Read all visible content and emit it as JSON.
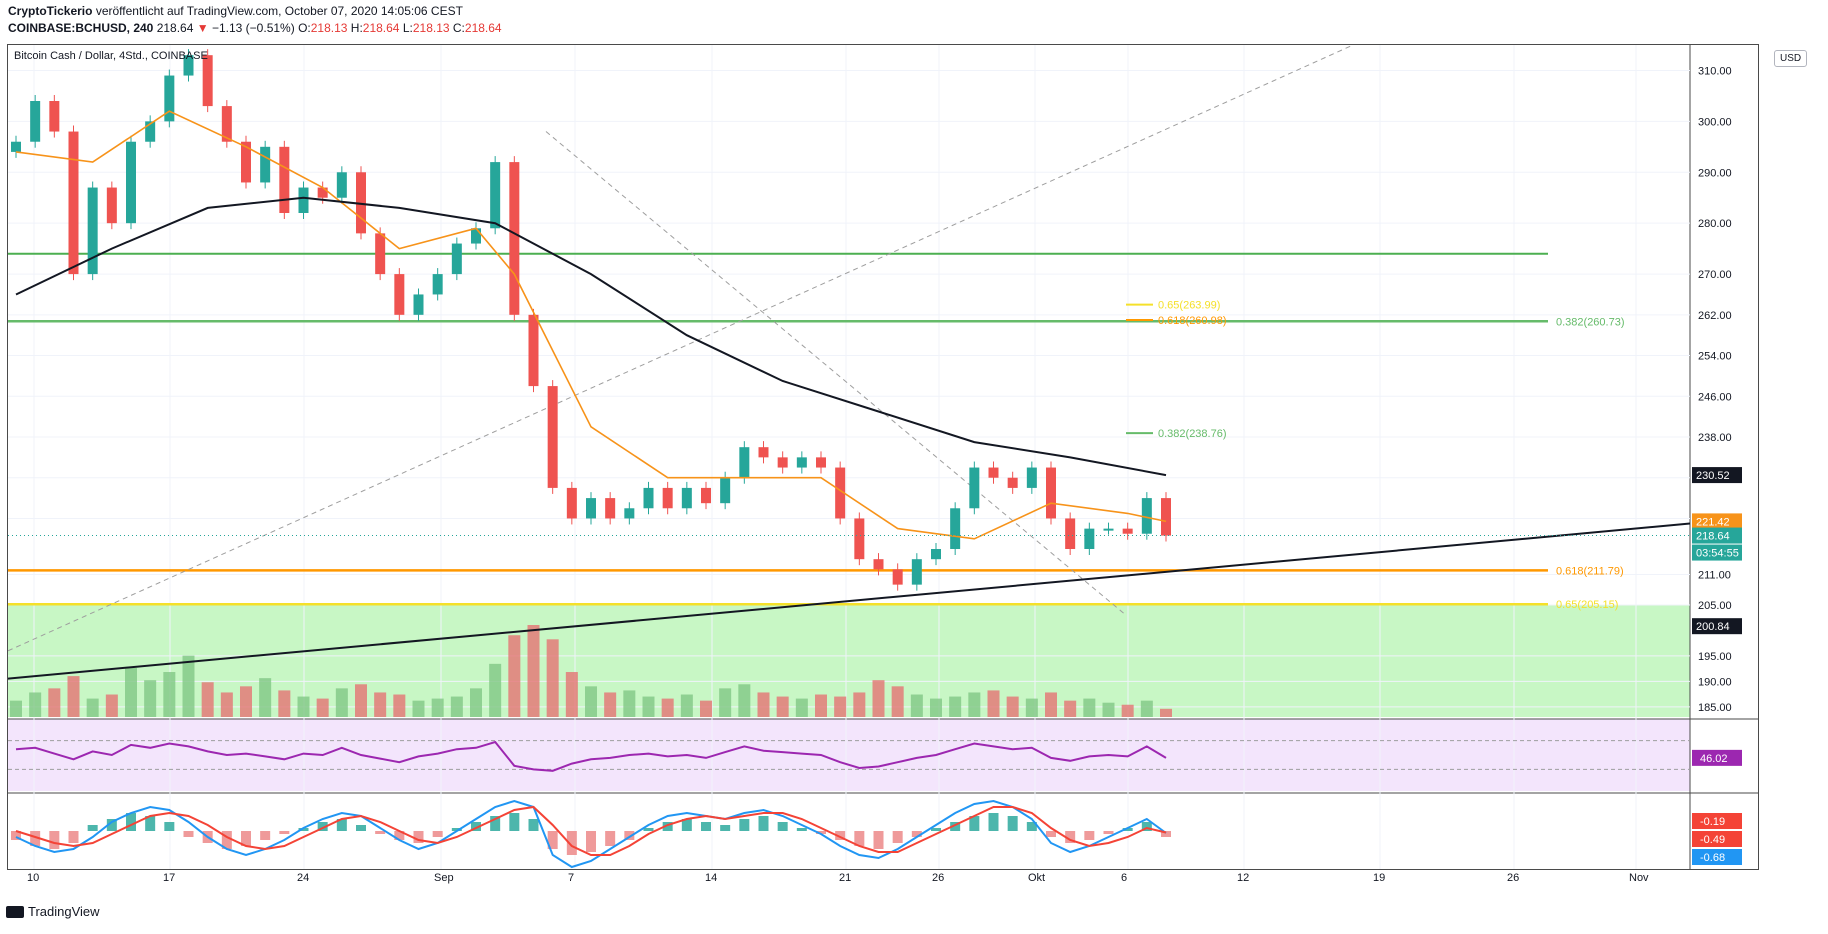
{
  "header": {
    "author": "CryptoTickerio",
    "published_text": "veröffentlicht auf TradingView.com, October 07, 2020 14:05:06 CEST",
    "symbol": "COINBASE:BCHUSD, 240",
    "last": "218.64",
    "change": "−1.13 (−0.51%)",
    "o_label": "O:",
    "o_value": "218.13",
    "h_label": "H:",
    "h_value": "218.64",
    "l_label": "L:",
    "l_value": "218.13",
    "c_label": "C:",
    "c_value": "218.64"
  },
  "chart_title": "Bitcoin Cash / Dollar, 4Std., COINBASE",
  "currency_badge": "USD",
  "branding": "TradingView",
  "colors": {
    "up": "#26a69a",
    "down": "#ef5350",
    "ma_short": "#f7931a",
    "ma_long": "#131722",
    "fib_orange": "#ff9800",
    "fib_yellow": "#f5e02a",
    "fib_green": "#66bb6a",
    "rsi_line": "#9c27b0",
    "macd_line": "#2196f3",
    "signal_line": "#f44336"
  },
  "chart_data": {
    "type": "line",
    "title": "Bitcoin Cash / Dollar, 4Std., COINBASE",
    "x_ticks": [
      "10",
      "17",
      "24",
      "Sep",
      "7",
      "14",
      "21",
      "26",
      "Okt",
      "6",
      "12",
      "19",
      "26",
      "Nov"
    ],
    "y_ticks": [
      310,
      300,
      290,
      280,
      270,
      262,
      254,
      246,
      238,
      230,
      222,
      211,
      205,
      195,
      190,
      185
    ],
    "ylim": [
      183,
      315
    ],
    "price_labels": [
      {
        "label": "230.52",
        "value": 230.52,
        "color": "#131722"
      },
      {
        "label": "221.42",
        "value": 221.42,
        "color": "#f7931a"
      },
      {
        "label": "218.64",
        "value": 218.64,
        "color": "#26a69a"
      },
      {
        "label": "03:54:55",
        "value": 215.3,
        "color": "#26a69a"
      },
      {
        "label": "200.84",
        "value": 200.84,
        "color": "#131722"
      }
    ],
    "fib_levels": [
      {
        "label": "0.618(211.79)",
        "value": 211.79,
        "color": "#ff9800"
      },
      {
        "label": "0.65(205.15)",
        "value": 205.15,
        "color": "#f5e02a"
      },
      {
        "label": "0.382(260.73)",
        "value": 260.73,
        "color": "#66bb6a"
      },
      {
        "label": "0.65(263.99)",
        "value": 263.99,
        "color": "#f5e02a"
      },
      {
        "label": "0.618(260.98)",
        "value": 260.98,
        "color": "#ff9800"
      },
      {
        "label": "0.382(238.76)",
        "value": 238.76,
        "color": "#66bb6a"
      }
    ],
    "horizontal_lines": [
      274.0,
      260.73
    ],
    "price_series": [
      {
        "x": 0,
        "y": 296
      },
      {
        "x": 1,
        "y": 304
      },
      {
        "x": 2,
        "y": 298
      },
      {
        "x": 3,
        "y": 270
      },
      {
        "x": 4,
        "y": 287
      },
      {
        "x": 5,
        "y": 280
      },
      {
        "x": 6,
        "y": 296
      },
      {
        "x": 7,
        "y": 300
      },
      {
        "x": 8,
        "y": 309
      },
      {
        "x": 9,
        "y": 313
      },
      {
        "x": 10,
        "y": 303
      },
      {
        "x": 11,
        "y": 296
      },
      {
        "x": 12,
        "y": 288
      },
      {
        "x": 13,
        "y": 295
      },
      {
        "x": 14,
        "y": 282
      },
      {
        "x": 15,
        "y": 287
      },
      {
        "x": 16,
        "y": 285
      },
      {
        "x": 17,
        "y": 290
      },
      {
        "x": 18,
        "y": 278
      },
      {
        "x": 19,
        "y": 270
      },
      {
        "x": 20,
        "y": 262
      },
      {
        "x": 21,
        "y": 266
      },
      {
        "x": 22,
        "y": 270
      },
      {
        "x": 23,
        "y": 276
      },
      {
        "x": 24,
        "y": 279
      },
      {
        "x": 25,
        "y": 292
      },
      {
        "x": 26,
        "y": 262
      },
      {
        "x": 27,
        "y": 248
      },
      {
        "x": 28,
        "y": 228
      },
      {
        "x": 29,
        "y": 222
      },
      {
        "x": 30,
        "y": 226
      },
      {
        "x": 31,
        "y": 222
      },
      {
        "x": 32,
        "y": 224
      },
      {
        "x": 33,
        "y": 228
      },
      {
        "x": 34,
        "y": 224
      },
      {
        "x": 35,
        "y": 228
      },
      {
        "x": 36,
        "y": 225
      },
      {
        "x": 37,
        "y": 230
      },
      {
        "x": 38,
        "y": 236
      },
      {
        "x": 39,
        "y": 234
      },
      {
        "x": 40,
        "y": 232
      },
      {
        "x": 41,
        "y": 234
      },
      {
        "x": 42,
        "y": 232
      },
      {
        "x": 43,
        "y": 222
      },
      {
        "x": 44,
        "y": 214
      },
      {
        "x": 45,
        "y": 212
      },
      {
        "x": 46,
        "y": 209
      },
      {
        "x": 47,
        "y": 214
      },
      {
        "x": 48,
        "y": 216
      },
      {
        "x": 49,
        "y": 224
      },
      {
        "x": 50,
        "y": 232
      },
      {
        "x": 51,
        "y": 230
      },
      {
        "x": 52,
        "y": 228
      },
      {
        "x": 53,
        "y": 232
      },
      {
        "x": 54,
        "y": 222
      },
      {
        "x": 55,
        "y": 216
      },
      {
        "x": 56,
        "y": 220
      },
      {
        "x": 57,
        "y": 220
      },
      {
        "x": 58,
        "y": 219
      },
      {
        "x": 59,
        "y": 226
      },
      {
        "x": 60,
        "y": 218.64
      }
    ],
    "ma_short": [
      {
        "x": 0,
        "y": 294
      },
      {
        "x": 4,
        "y": 292
      },
      {
        "x": 8,
        "y": 302
      },
      {
        "x": 12,
        "y": 295
      },
      {
        "x": 16,
        "y": 287
      },
      {
        "x": 20,
        "y": 275
      },
      {
        "x": 24,
        "y": 279
      },
      {
        "x": 26,
        "y": 270
      },
      {
        "x": 30,
        "y": 240
      },
      {
        "x": 34,
        "y": 230
      },
      {
        "x": 38,
        "y": 230
      },
      {
        "x": 42,
        "y": 230
      },
      {
        "x": 46,
        "y": 220
      },
      {
        "x": 50,
        "y": 218
      },
      {
        "x": 54,
        "y": 225
      },
      {
        "x": 58,
        "y": 223
      },
      {
        "x": 60,
        "y": 221.42
      }
    ],
    "ma_long": [
      {
        "x": 0,
        "y": 266
      },
      {
        "x": 5,
        "y": 275
      },
      {
        "x": 10,
        "y": 283
      },
      {
        "x": 15,
        "y": 285
      },
      {
        "x": 20,
        "y": 283
      },
      {
        "x": 25,
        "y": 280
      },
      {
        "x": 30,
        "y": 270
      },
      {
        "x": 35,
        "y": 258
      },
      {
        "x": 40,
        "y": 249
      },
      {
        "x": 45,
        "y": 243
      },
      {
        "x": 50,
        "y": 237
      },
      {
        "x": 55,
        "y": 234
      },
      {
        "x": 60,
        "y": 230.52
      }
    ],
    "trendline": {
      "label": "",
      "start": {
        "x": -2,
        "y": 190
      },
      "end": {
        "x": 90,
        "y": 221
      }
    },
    "volume": [
      8,
      12,
      14,
      20,
      9,
      11,
      24,
      18,
      22,
      30,
      17,
      12,
      15,
      19,
      13,
      10,
      9,
      14,
      16,
      12,
      11,
      8,
      9,
      10,
      14,
      26,
      40,
      45,
      38,
      22,
      15,
      12,
      13,
      10,
      9,
      11,
      8,
      14,
      16,
      12,
      10,
      9,
      11,
      10,
      12,
      18,
      15,
      11,
      9,
      10,
      12,
      13,
      10,
      9,
      12,
      8,
      9,
      7,
      6,
      8,
      4
    ],
    "rsi": {
      "value": "46.02",
      "upper": 70,
      "lower": 30,
      "series": [
        58,
        60,
        52,
        44,
        55,
        50,
        64,
        60,
        66,
        62,
        55,
        50,
        52,
        48,
        44,
        52,
        50,
        60,
        50,
        45,
        40,
        48,
        52,
        58,
        60,
        68,
        35,
        30,
        28,
        38,
        44,
        46,
        50,
        52,
        48,
        50,
        46,
        54,
        62,
        56,
        54,
        52,
        50,
        40,
        32,
        34,
        40,
        46,
        50,
        58,
        66,
        62,
        58,
        60,
        46,
        42,
        48,
        50,
        48,
        62,
        46
      ]
    },
    "macd": {
      "labels": [
        {
          "label": "-0.19",
          "color": "#f44336"
        },
        {
          "label": "-0.49",
          "color": "#f44336"
        },
        {
          "label": "-0.68",
          "color": "#2196f3"
        }
      ],
      "histogram": [
        -3,
        -5,
        -6,
        -4,
        2,
        4,
        6,
        5,
        3,
        -2,
        -4,
        -6,
        -5,
        -3,
        -1,
        1,
        3,
        4,
        2,
        -1,
        -3,
        -4,
        -2,
        1,
        3,
        5,
        6,
        4,
        -6,
        -8,
        -7,
        -5,
        -3,
        1,
        3,
        4,
        3,
        2,
        4,
        5,
        3,
        1,
        -1,
        -3,
        -5,
        -6,
        -4,
        -2,
        1,
        3,
        5,
        6,
        5,
        3,
        -2,
        -4,
        -3,
        -1,
        1,
        3,
        -2
      ],
      "macd_line": [
        -2,
        -5,
        -7,
        -6,
        -2,
        3,
        6,
        8,
        7,
        3,
        -2,
        -6,
        -8,
        -6,
        -3,
        1,
        4,
        6,
        5,
        1,
        -3,
        -6,
        -4,
        0,
        4,
        8,
        10,
        8,
        -8,
        -12,
        -10,
        -6,
        -2,
        2,
        5,
        6,
        5,
        4,
        6,
        7,
        5,
        2,
        -1,
        -5,
        -8,
        -9,
        -6,
        -2,
        2,
        6,
        9,
        10,
        8,
        4,
        -4,
        -7,
        -5,
        -2,
        1,
        4,
        -0.68
      ],
      "signal_line": [
        0,
        -2,
        -4,
        -5,
        -4,
        -1,
        2,
        5,
        6,
        5,
        2,
        -2,
        -5,
        -6,
        -5,
        -2,
        1,
        4,
        5,
        3,
        0,
        -3,
        -4,
        -2,
        1,
        4,
        7,
        8,
        2,
        -5,
        -8,
        -8,
        -5,
        -1,
        2,
        4,
        5,
        4,
        5,
        6,
        6,
        4,
        1,
        -2,
        -5,
        -7,
        -7,
        -4,
        -1,
        2,
        5,
        8,
        8,
        6,
        1,
        -3,
        -5,
        -4,
        -2,
        1,
        -0.49
      ]
    }
  }
}
